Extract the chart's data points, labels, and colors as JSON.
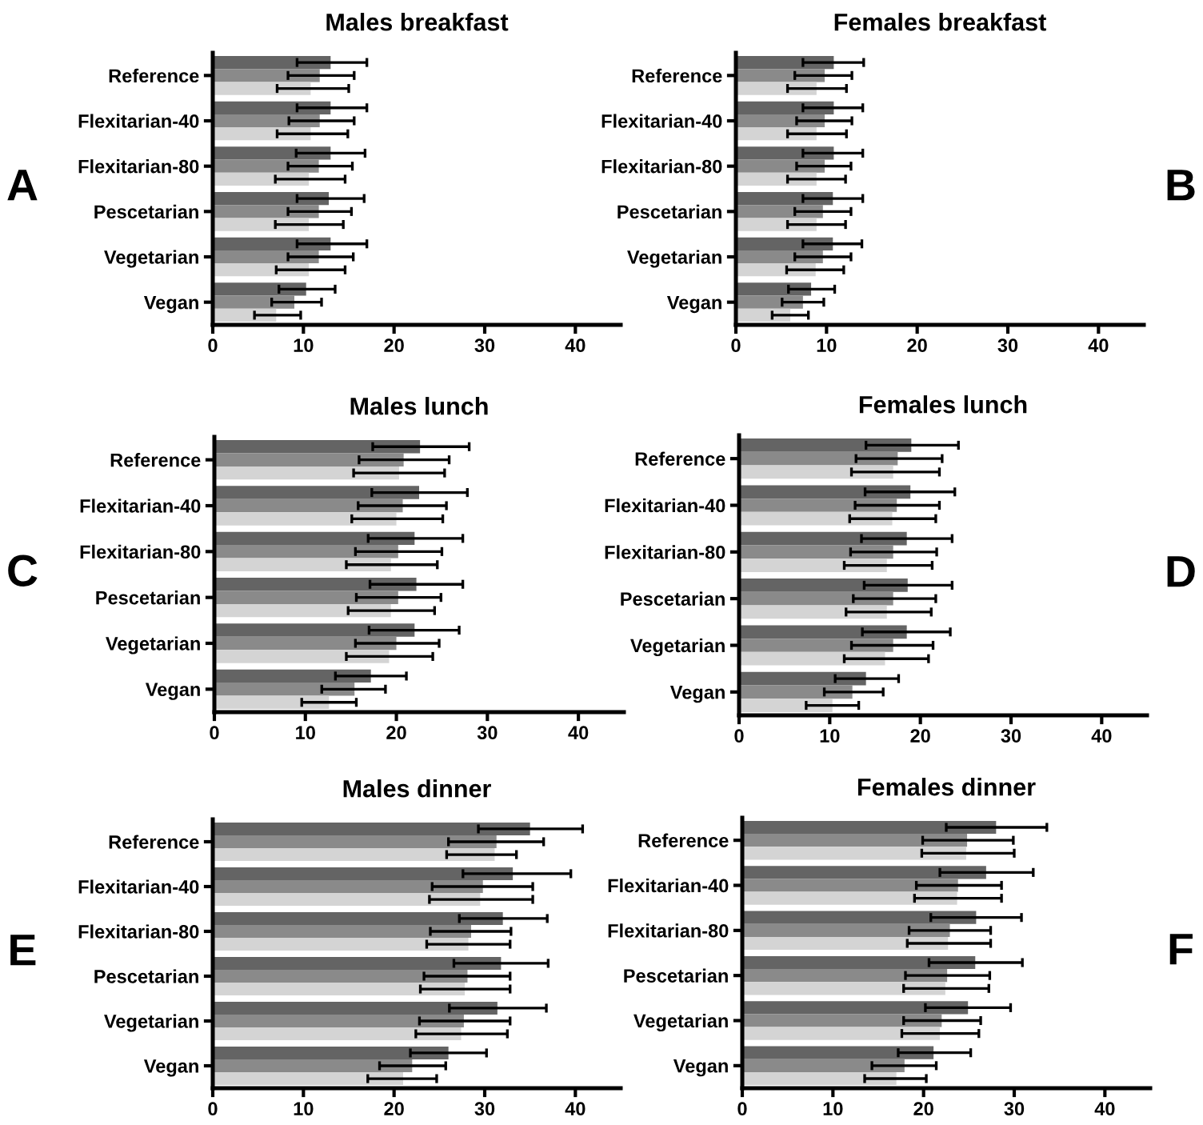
{
  "chart_data": [
    {
      "type": "bar",
      "orientation": "horizontal",
      "title": "Males breakfast",
      "annotations": [
        "A"
      ],
      "categories": [
        "Reference",
        "Flexitarian-40",
        "Flexitarian-80",
        "Pescetarian",
        "Vegetarian",
        "Vegan"
      ],
      "xlim": [
        0,
        45
      ],
      "xticks": [
        0,
        10,
        20,
        30,
        40
      ],
      "series": [
        {
          "color": "#646464",
          "values": [
            13,
            13,
            13,
            12.8,
            13,
            10.3
          ],
          "errors": [
            [
              9.3,
              17
            ],
            [
              9.3,
              17
            ],
            [
              9.2,
              16.8
            ],
            [
              9.3,
              16.7
            ],
            [
              9.3,
              17
            ],
            [
              7.3,
              13.5
            ]
          ]
        },
        {
          "color": "#8a8a8a",
          "values": [
            11.8,
            11.8,
            11.7,
            11.7,
            11.7,
            9
          ],
          "errors": [
            [
              8.3,
              15.6
            ],
            [
              8.4,
              15.6
            ],
            [
              8.3,
              15.4
            ],
            [
              8.3,
              15.3
            ],
            [
              8.3,
              15.5
            ],
            [
              6.5,
              12
            ]
          ]
        },
        {
          "color": "#d4d4d4",
          "values": [
            10.8,
            10.8,
            10.6,
            10.6,
            10.6,
            7
          ],
          "errors": [
            [
              7.1,
              15
            ],
            [
              7.1,
              14.9
            ],
            [
              6.9,
              14.6
            ],
            [
              6.9,
              14.4
            ],
            [
              7,
              14.6
            ],
            [
              4.6,
              9.7
            ]
          ]
        }
      ]
    },
    {
      "type": "bar",
      "orientation": "horizontal",
      "title": "Females breakfast",
      "annotations": [
        "B"
      ],
      "categories": [
        "Reference",
        "Flexitarian-40",
        "Flexitarian-80",
        "Pescetarian",
        "Vegetarian",
        "Vegan"
      ],
      "xlim": [
        0,
        45
      ],
      "xticks": [
        0,
        10,
        20,
        30,
        40
      ],
      "series": [
        {
          "color": "#646464",
          "values": [
            10.8,
            10.8,
            10.8,
            10.7,
            10.7,
            8.3
          ],
          "errors": [
            [
              7.4,
              14.1
            ],
            [
              7.4,
              14
            ],
            [
              7.4,
              14
            ],
            [
              7.4,
              14
            ],
            [
              7.4,
              13.9
            ],
            [
              5.8,
              10.9
            ]
          ]
        },
        {
          "color": "#8a8a8a",
          "values": [
            9.8,
            9.8,
            9.8,
            9.6,
            9.6,
            7.4
          ],
          "errors": [
            [
              6.5,
              12.8
            ],
            [
              6.7,
              12.8
            ],
            [
              6.7,
              12.7
            ],
            [
              6.5,
              12.7
            ],
            [
              6.5,
              12.7
            ],
            [
              5.1,
              9.7
            ]
          ]
        },
        {
          "color": "#d4d4d4",
          "values": [
            8.9,
            8.9,
            8.9,
            8.9,
            8.8,
            6
          ],
          "errors": [
            [
              5.7,
              12.2
            ],
            [
              5.7,
              12.2
            ],
            [
              5.7,
              12.1
            ],
            [
              5.7,
              12.1
            ],
            [
              5.6,
              11.9
            ],
            [
              4,
              8
            ]
          ]
        }
      ]
    },
    {
      "type": "bar",
      "orientation": "horizontal",
      "title": "Males lunch",
      "annotations": [
        "C"
      ],
      "categories": [
        "Reference",
        "Flexitarian-40",
        "Flexitarian-80",
        "Pescetarian",
        "Vegetarian",
        "Vegan"
      ],
      "xlim": [
        0,
        45
      ],
      "xticks": [
        0,
        10,
        20,
        30,
        40
      ],
      "series": [
        {
          "color": "#646464",
          "values": [
            22.6,
            22.5,
            22,
            22.2,
            22,
            17.2
          ],
          "errors": [
            [
              17.4,
              28
            ],
            [
              17.3,
              27.8
            ],
            [
              16.9,
              27.3
            ],
            [
              17.1,
              27.3
            ],
            [
              17,
              26.9
            ],
            [
              13.3,
              21.1
            ]
          ]
        },
        {
          "color": "#8a8a8a",
          "values": [
            20.8,
            20.7,
            20.2,
            20.2,
            20,
            15.4
          ],
          "errors": [
            [
              15.9,
              25.8
            ],
            [
              15.8,
              25.5
            ],
            [
              15.5,
              25
            ],
            [
              15.6,
              24.9
            ],
            [
              15.5,
              24.7
            ],
            [
              11.8,
              18.8
            ]
          ]
        },
        {
          "color": "#d4d4d4",
          "values": [
            20.3,
            20,
            19.4,
            19.4,
            19.2,
            12.6
          ],
          "errors": [
            [
              15.3,
              25.3
            ],
            [
              15.1,
              25.1
            ],
            [
              14.5,
              24.5
            ],
            [
              14.7,
              24.2
            ],
            [
              14.5,
              24
            ],
            [
              9.6,
              15.6
            ]
          ]
        }
      ]
    },
    {
      "type": "bar",
      "orientation": "horizontal",
      "title": "Females lunch",
      "annotations": [
        "D"
      ],
      "categories": [
        "Reference",
        "Flexitarian-40",
        "Flexitarian-80",
        "Pescetarian",
        "Vegetarian",
        "Vegan"
      ],
      "xlim": [
        0,
        45
      ],
      "xticks": [
        0,
        10,
        20,
        30,
        40
      ],
      "series": [
        {
          "color": "#646464",
          "values": [
            19,
            18.9,
            18.5,
            18.6,
            18.5,
            14
          ],
          "errors": [
            [
              14,
              24.2
            ],
            [
              13.9,
              23.8
            ],
            [
              13.5,
              23.5
            ],
            [
              13.8,
              23.5
            ],
            [
              13.6,
              23.3
            ],
            [
              10.6,
              17.6
            ]
          ]
        },
        {
          "color": "#8a8a8a",
          "values": [
            17.5,
            17.4,
            17,
            17,
            17,
            12.5
          ],
          "errors": [
            [
              12.9,
              22.4
            ],
            [
              12.8,
              22.1
            ],
            [
              12.3,
              21.8
            ],
            [
              12.6,
              21.7
            ],
            [
              12.4,
              21.4
            ],
            [
              9.4,
              15.9
            ]
          ]
        },
        {
          "color": "#d4d4d4",
          "values": [
            17,
            16.9,
            16.3,
            16.3,
            16.1,
            10.3
          ],
          "errors": [
            [
              12.4,
              22.1
            ],
            [
              12.2,
              21.7
            ],
            [
              11.6,
              21.3
            ],
            [
              11.8,
              21.2
            ],
            [
              11.6,
              20.9
            ],
            [
              7.4,
              13.2
            ]
          ]
        }
      ]
    },
    {
      "type": "bar",
      "orientation": "horizontal",
      "title": "Males dinner",
      "annotations": [
        "E"
      ],
      "categories": [
        "Reference",
        "Flexitarian-40",
        "Flexitarian-80",
        "Pescetarian",
        "Vegetarian",
        "Vegan"
      ],
      "xlim": [
        0,
        45
      ],
      "xticks": [
        0,
        10,
        20,
        30,
        40
      ],
      "series": [
        {
          "color": "#646464",
          "values": [
            35,
            33.1,
            32,
            31.8,
            31.4,
            26
          ],
          "errors": [
            [
              29.3,
              40.8
            ],
            [
              27.6,
              39.5
            ],
            [
              27.2,
              36.9
            ],
            [
              26.6,
              37
            ],
            [
              26.1,
              36.8
            ],
            [
              21.8,
              30.2
            ]
          ]
        },
        {
          "color": "#8a8a8a",
          "values": [
            31.3,
            29.8,
            28.5,
            28.1,
            27.7,
            22
          ],
          "errors": [
            [
              26,
              36.5
            ],
            [
              24.2,
              35.3
            ],
            [
              24,
              32.9
            ],
            [
              23.3,
              32.8
            ],
            [
              22.8,
              32.8
            ],
            [
              18.4,
              25.7
            ]
          ]
        },
        {
          "color": "#d4d4d4",
          "values": [
            31.1,
            29.5,
            28.2,
            27.8,
            27.4,
            21
          ],
          "errors": [
            [
              25.8,
              33.5
            ],
            [
              23.9,
              35.3
            ],
            [
              23.6,
              32.8
            ],
            [
              22.9,
              32.8
            ],
            [
              22.4,
              32.5
            ],
            [
              17.1,
              24.7
            ]
          ]
        }
      ]
    },
    {
      "type": "bar",
      "orientation": "horizontal",
      "title": "Females dinner",
      "annotations": [
        "F"
      ],
      "categories": [
        "Reference",
        "Flexitarian-40",
        "Flexitarian-80",
        "Pescetarian",
        "Vegetarian",
        "Vegan"
      ],
      "xlim": [
        0,
        45
      ],
      "xticks": [
        0,
        10,
        20,
        30,
        40
      ],
      "series": [
        {
          "color": "#646464",
          "values": [
            28,
            26.9,
            25.8,
            25.7,
            24.9,
            21.1
          ],
          "errors": [
            [
              22.5,
              33.6
            ],
            [
              21.8,
              32.1
            ],
            [
              20.8,
              30.8
            ],
            [
              20.6,
              30.9
            ],
            [
              20.2,
              29.6
            ],
            [
              17.2,
              25.2
            ]
          ]
        },
        {
          "color": "#8a8a8a",
          "values": [
            24.8,
            23.8,
            22.9,
            22.6,
            22,
            17.9
          ],
          "errors": [
            [
              19.9,
              29.9
            ],
            [
              19.2,
              28.6
            ],
            [
              18.4,
              27.4
            ],
            [
              18,
              27.3
            ],
            [
              17.8,
              26.3
            ],
            [
              14.3,
              21.4
            ]
          ]
        },
        {
          "color": "#d4d4d4",
          "values": [
            24.7,
            23.7,
            22.7,
            22.4,
            21.8,
            17
          ],
          "errors": [
            [
              19.8,
              30
            ],
            [
              19,
              28.6
            ],
            [
              18.2,
              27.4
            ],
            [
              17.8,
              27.2
            ],
            [
              17.6,
              26.1
            ],
            [
              13.5,
              20.3
            ]
          ]
        }
      ]
    }
  ]
}
